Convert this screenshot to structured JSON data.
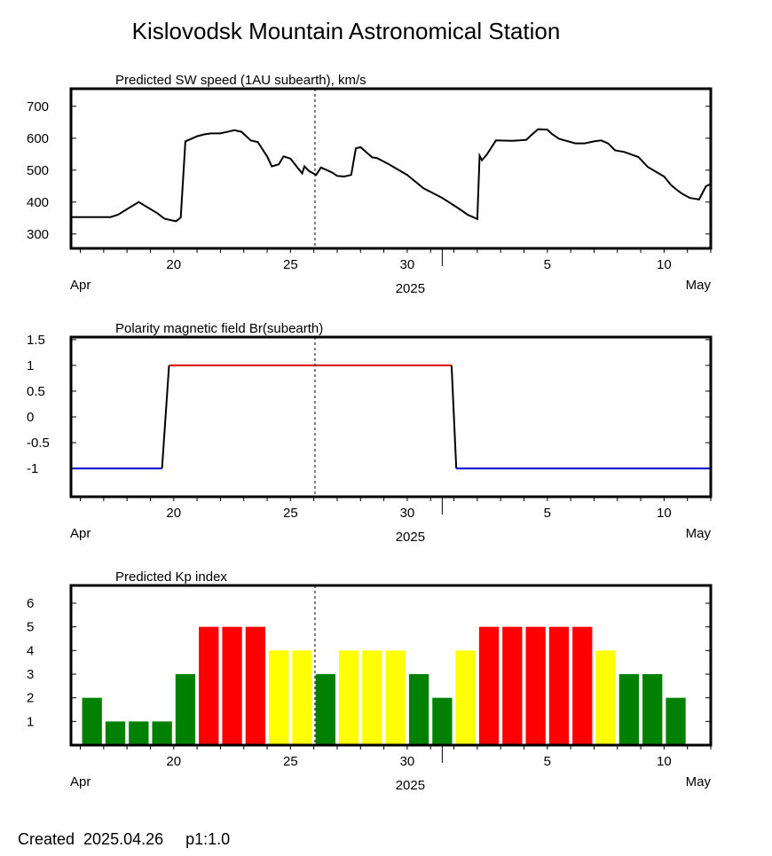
{
  "title": "Kislovodsk Mountain Astronomical Station",
  "footer": "Created  2025.04.26     p1:1.0",
  "x_axis": {
    "day_ticks": [
      {
        "day": 20,
        "label": "20"
      },
      {
        "day": 25,
        "label": "25"
      },
      {
        "day": 30,
        "label": "30"
      },
      {
        "day": 36,
        "label": "5"
      },
      {
        "day": 41,
        "label": "10"
      }
    ],
    "month_boundary_day": 31.5,
    "left_month": "Apr",
    "right_month": "May",
    "year": "2025",
    "xlim": [
      15.6,
      43.0
    ],
    "current_day": 26.05
  },
  "colors": {
    "line": "#000000",
    "br_positive": "#dd0000",
    "br_negative": "#0000cc",
    "kp_quiet": "#008000",
    "kp_active": "#ffff00",
    "kp_storm": "#ff0000"
  },
  "chart_data": [
    {
      "type": "line",
      "title": "Predicted SW speed (1AU subearth), km/s",
      "ylim": [
        255,
        755
      ],
      "yticks": [
        300,
        400,
        500,
        600,
        700
      ],
      "series": [
        {
          "x": [
            15.6,
            17.3,
            17.6,
            18.5,
            19.3,
            19.6,
            19.9,
            20.1,
            20.3,
            20.5,
            21.0,
            21.3,
            21.6,
            22.0,
            22.6,
            22.9,
            23.3,
            23.6,
            24.0,
            24.2,
            24.5,
            24.7,
            25.0,
            25.3,
            25.5,
            25.6,
            25.8,
            26.1,
            26.3,
            26.5,
            26.8,
            27.0,
            27.3,
            27.6,
            27.8,
            28.0,
            28.5,
            28.7,
            29.2,
            30.0,
            30.7,
            31.5,
            32.2,
            32.6,
            33.0,
            33.1,
            33.2,
            33.4,
            33.8,
            34.5,
            34.8,
            35.1,
            35.3,
            35.6,
            36.0,
            36.2,
            36.5,
            37.2,
            37.6,
            38.0,
            38.3,
            38.6,
            38.9,
            39.3,
            39.9,
            40.3,
            41.0,
            41.3,
            41.6,
            41.8,
            42.1,
            42.5,
            42.8,
            43.0
          ],
          "y": [
            353,
            353,
            360,
            400,
            365,
            348,
            343,
            340,
            352,
            590,
            606,
            612,
            615,
            615,
            625,
            620,
            593,
            588,
            543,
            512,
            518,
            543,
            536,
            508,
            490,
            512,
            497,
            485,
            508,
            502,
            492,
            482,
            480,
            485,
            568,
            572,
            540,
            538,
            519,
            485,
            443,
            413,
            380,
            360,
            347,
            545,
            531,
            548,
            593,
            592,
            593,
            595,
            609,
            628,
            627,
            613,
            598,
            584,
            584,
            590,
            593,
            584,
            562,
            557,
            541,
            510,
            480,
            453,
            435,
            425,
            413,
            408,
            450,
            456
          ]
        }
      ]
    },
    {
      "type": "line",
      "title": "Polarity magnetic field  Br(subearth)",
      "ylim": [
        -1.55,
        1.55
      ],
      "yticks": [
        {
          "v": -1,
          "label": "-1"
        },
        {
          "v": -0.5,
          "label": "-0.5"
        },
        {
          "v": 0,
          "label": "0"
        },
        {
          "v": 0.5,
          "label": "0.5"
        },
        {
          "v": 1,
          "label": "1"
        },
        {
          "v": 1.5,
          "label": "1.5"
        }
      ],
      "series": [
        {
          "name": "negative",
          "x": [
            15.6,
            19.5
          ],
          "y": [
            -1,
            -1
          ],
          "color_key": "br_negative"
        },
        {
          "name": "transition",
          "x": [
            19.5,
            19.8
          ],
          "y": [
            -1,
            1
          ],
          "color_key": "line"
        },
        {
          "name": "positive",
          "x": [
            19.8,
            31.9
          ],
          "y": [
            1,
            1
          ],
          "color_key": "br_positive"
        },
        {
          "name": "transition",
          "x": [
            31.9,
            32.1
          ],
          "y": [
            1,
            -1
          ],
          "color_key": "line"
        },
        {
          "name": "negative",
          "x": [
            32.1,
            43.0
          ],
          "y": [
            -1,
            -1
          ],
          "color_key": "br_negative"
        }
      ]
    },
    {
      "type": "bar",
      "title": "Predicted Kp index",
      "ylim": [
        0,
        6.75
      ],
      "yticks": [
        1,
        2,
        3,
        4,
        5,
        6
      ],
      "x": [
        16.5,
        17.5,
        18.5,
        19.5,
        20.5,
        21.5,
        22.5,
        23.5,
        24.5,
        25.5,
        26.5,
        27.5,
        28.5,
        29.5,
        30.5,
        31.5,
        32.5,
        33.5,
        34.5,
        35.5,
        36.5,
        37.5,
        38.5,
        39.5,
        40.5,
        41.5,
        42.5
      ],
      "values": [
        2,
        1,
        1,
        1,
        3,
        5,
        5,
        5,
        4,
        4,
        3,
        4,
        4,
        4,
        3,
        2,
        4,
        5,
        5,
        5,
        5,
        5,
        4,
        3,
        3,
        2,
        0
      ]
    }
  ]
}
